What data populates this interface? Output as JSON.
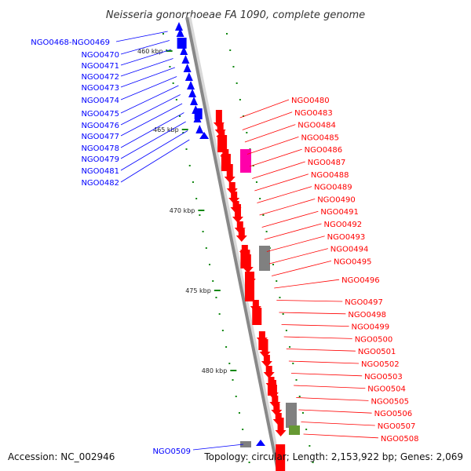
{
  "map": {
    "title": "Neisseria gonorrhoeae FA 1090, complete genome",
    "accession": "Accession: NC_002946",
    "summary": "Topology: circular; Length: 2,153,922 bp; Genes: 2,069",
    "colors": {
      "left_strand": "#0000ff",
      "right_strand": "#ff0000",
      "other_feature": "#ff00aa",
      "grey_feature": "#808080",
      "olive_feature": "#669933",
      "tick": "#118811",
      "backbone": "#888888"
    }
  },
  "scale": {
    "ticks": [
      "460 kbp",
      "465 kbp",
      "470 kbp",
      "475 kbp",
      "480 kbp"
    ]
  },
  "genes": {
    "left": [
      "NGO0468-NGO0469",
      "NGO0470",
      "NGO0471",
      "NGO0472",
      "NGO0473",
      "NGO0474",
      "NGO0475",
      "NGO0476",
      "NGO0477",
      "NGO0478",
      "NGO0479",
      "NGO0481",
      "NGO0482"
    ],
    "right": [
      "NGO0480",
      "NGO0483",
      "NGO0484",
      "NGO0485",
      "NGO0486",
      "NGO0487",
      "NGO0488",
      "NGO0489",
      "NGO0490",
      "NGO0491",
      "NGO0492",
      "NGO0493",
      "NGO0494",
      "NGO0495",
      "NGO0496",
      "NGO0497",
      "NGO0498",
      "NGO0499",
      "NGO0500",
      "NGO0501",
      "NGO0502",
      "NGO0503",
      "NGO0504",
      "NGO0505",
      "NGO0506",
      "NGO0507",
      "NGO0508"
    ],
    "bottom": [
      "NGO0509"
    ]
  }
}
